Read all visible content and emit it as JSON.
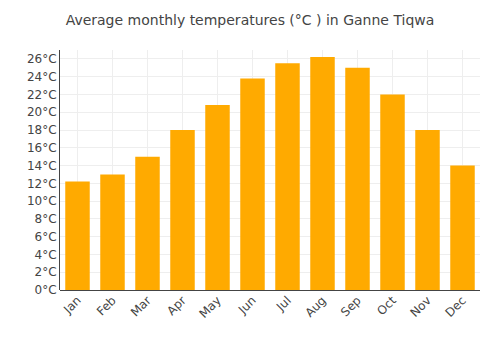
{
  "chart_data": {
    "type": "bar",
    "title": "Average monthly temperatures (°C ) in Ganne Tiqwa",
    "categories": [
      "Jan",
      "Feb",
      "Mar",
      "Apr",
      "May",
      "Jun",
      "Jul",
      "Aug",
      "Sep",
      "Oct",
      "Nov",
      "Dec"
    ],
    "values": [
      12.2,
      13.0,
      15.0,
      18.0,
      20.8,
      23.8,
      25.5,
      26.2,
      25.0,
      22.0,
      18.0,
      14.0
    ],
    "color": "#FFAA00",
    "ylim": [
      0,
      27
    ],
    "yticks": [
      {
        "value": 0,
        "label": "0°C"
      },
      {
        "value": 2,
        "label": "2°C"
      },
      {
        "value": 4,
        "label": "4°C"
      },
      {
        "value": 6,
        "label": "6°C"
      },
      {
        "value": 8,
        "label": "8°C"
      },
      {
        "value": 10,
        "label": "10°C"
      },
      {
        "value": 12,
        "label": "12°C"
      },
      {
        "value": 14,
        "label": "14°C"
      },
      {
        "value": 16,
        "label": "16°C"
      },
      {
        "value": 18,
        "label": "18°C"
      },
      {
        "value": 20,
        "label": "20°C"
      },
      {
        "value": 22,
        "label": "22°C"
      },
      {
        "value": 24,
        "label": "24°C"
      },
      {
        "value": 26,
        "label": "26°C"
      }
    ],
    "grid": true
  }
}
